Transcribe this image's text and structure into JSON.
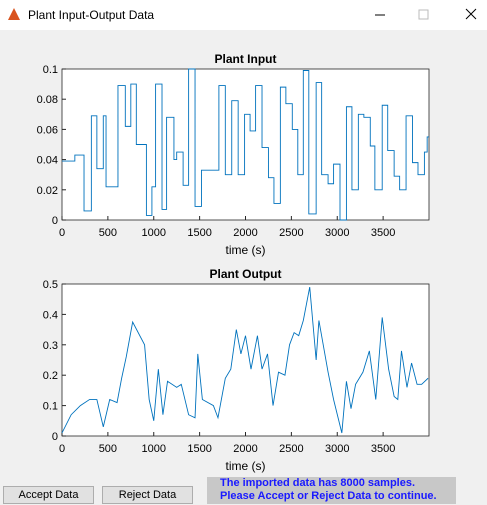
{
  "window_title": "Plant Input-Output Data",
  "chart_data": [
    {
      "type": "stairs",
      "title": "Plant Input",
      "x_label": "time (s)",
      "color": "#0072bd",
      "x": [
        0,
        140,
        240,
        320,
        380,
        450,
        480,
        610,
        690,
        750,
        810,
        920,
        980,
        1020,
        1090,
        1140,
        1220,
        1250,
        1320,
        1380,
        1450,
        1520,
        1710,
        1780,
        1850,
        1920,
        1990,
        2050,
        2110,
        2180,
        2250,
        2310,
        2380,
        2440,
        2510,
        2570,
        2630,
        2690,
        2770,
        2830,
        2900,
        2960,
        3030,
        3100,
        3160,
        3230,
        3290,
        3360,
        3410,
        3490,
        3550,
        3620,
        3680,
        3750,
        3820,
        3880,
        3950,
        3980
      ],
      "values": [
        0.039,
        0.043,
        0.006,
        0.069,
        0.034,
        0.069,
        0.022,
        0.089,
        0.062,
        0.09,
        0.05,
        0.003,
        0.022,
        0.09,
        0.007,
        0.068,
        0.04,
        0.045,
        0.023,
        0.1,
        0.009,
        0.033,
        0.089,
        0.03,
        0.079,
        0.03,
        0.07,
        0.059,
        0.089,
        0.048,
        0.028,
        0.011,
        0.088,
        0.077,
        0.06,
        0.03,
        0.099,
        0.004,
        0.091,
        0.03,
        0.024,
        0.037,
        0,
        0.075,
        0.02,
        0.07,
        0.068,
        0.049,
        0.02,
        0.076,
        0.046,
        0.029,
        0.02,
        0.069,
        0.038,
        0.03,
        0.045,
        0.055
      ],
      "xlim": [
        0,
        4000
      ],
      "xticks": [
        0,
        500,
        1000,
        1500,
        2000,
        2500,
        3000,
        3500
      ],
      "ylim": [
        0,
        0.1
      ],
      "yticks": [
        0,
        0.02,
        0.04,
        0.06,
        0.08,
        0.1
      ]
    },
    {
      "type": "line",
      "title": "Plant Output",
      "x_label": "time (s)",
      "color": "#0072bd",
      "x": [
        0,
        100,
        200,
        300,
        380,
        450,
        520,
        600,
        650,
        700,
        770,
        900,
        950,
        1000,
        1050,
        1100,
        1150,
        1250,
        1300,
        1380,
        1450,
        1480,
        1530,
        1650,
        1700,
        1780,
        1840,
        1900,
        1950,
        2000,
        2060,
        2130,
        2180,
        2240,
        2300,
        2360,
        2430,
        2480,
        2530,
        2580,
        2630,
        2700,
        2770,
        2800,
        2900,
        2960,
        3050,
        3100,
        3150,
        3200,
        3280,
        3350,
        3420,
        3490,
        3560,
        3620,
        3660,
        3700,
        3760,
        3810,
        3870,
        3920,
        3990
      ],
      "values": [
        0.01,
        0.07,
        0.1,
        0.12,
        0.12,
        0.03,
        0.12,
        0.11,
        0.19,
        0.26,
        0.375,
        0.3,
        0.12,
        0.05,
        0.22,
        0.07,
        0.18,
        0.16,
        0.17,
        0.07,
        0.06,
        0.27,
        0.12,
        0.1,
        0.06,
        0.19,
        0.22,
        0.35,
        0.27,
        0.33,
        0.22,
        0.33,
        0.22,
        0.27,
        0.1,
        0.21,
        0.2,
        0.3,
        0.34,
        0.33,
        0.38,
        0.49,
        0.25,
        0.38,
        0.21,
        0.12,
        0.01,
        0.18,
        0.09,
        0.17,
        0.21,
        0.28,
        0.12,
        0.39,
        0.22,
        0.13,
        0.12,
        0.28,
        0.16,
        0.24,
        0.17,
        0.17,
        0.19
      ],
      "xlim": [
        0,
        4000
      ],
      "xticks": [
        0,
        500,
        1000,
        1500,
        2000,
        2500,
        3000,
        3500
      ],
      "ylim": [
        0,
        0.5
      ],
      "yticks": [
        0,
        0.1,
        0.2,
        0.3,
        0.4,
        0.5
      ]
    }
  ],
  "buttons": [
    "Accept Data",
    "Reject Data"
  ],
  "message": [
    "The imported data has 8000 samples.",
    "Please Accept or Reject Data to continue."
  ]
}
